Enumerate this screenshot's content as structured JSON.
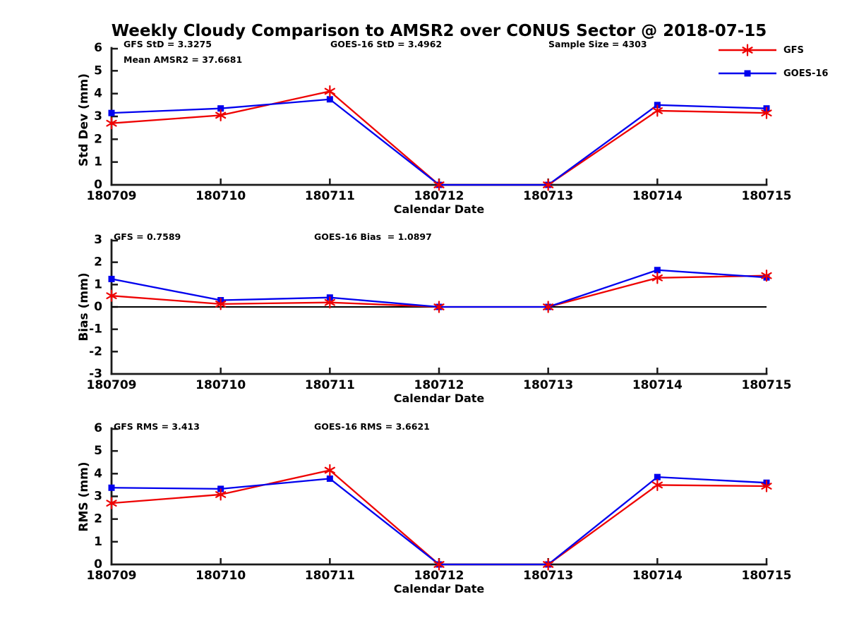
{
  "title": "Weekly Cloudy Comparison to AMSR2 over CONUS Sector @ 2018-07-15",
  "colors": {
    "gfs": "#ee0000",
    "goes16": "#0000ee",
    "axis": "#1a1a1a",
    "zero_line": "#000000",
    "text": "#000000",
    "background": "#ffffff"
  },
  "legend": {
    "items": [
      {
        "label": "GFS",
        "marker": "asterisk",
        "color": "#ee0000"
      },
      {
        "label": "GOES-16",
        "marker": "square",
        "color": "#0000ee"
      }
    ]
  },
  "chart_data": [
    {
      "type": "line",
      "ylabel": "Std Dev (mm)",
      "xlabel": "Calendar Date",
      "ylim": [
        0,
        6
      ],
      "yticks": [
        0,
        1,
        2,
        3,
        4,
        5,
        6
      ],
      "grid": false,
      "legend_position": "upper-right-outside",
      "categories": [
        "180709",
        "180710",
        "180711",
        "180712",
        "180713",
        "180714",
        "180715"
      ],
      "series": [
        {
          "name": "GFS",
          "color": "#ee0000",
          "marker": "asterisk",
          "values": [
            2.7,
            3.05,
            4.1,
            0,
            0,
            3.25,
            3.15
          ]
        },
        {
          "name": "GOES-16",
          "color": "#0000ee",
          "marker": "square",
          "values": [
            3.15,
            3.35,
            3.75,
            0,
            0,
            3.5,
            3.35
          ]
        }
      ],
      "annotations": {
        "left": "GFS StD = 3.3275",
        "left2": "Mean AMSR2 = 37.6681",
        "center": "GOES-16 StD = 3.4962",
        "right": "Sample Size = 4303"
      }
    },
    {
      "type": "line",
      "ylabel": "Bias (mm)",
      "xlabel": "Calendar Date",
      "ylim": [
        -3,
        3
      ],
      "yticks": [
        3,
        2,
        1,
        0,
        -1,
        -2,
        -3
      ],
      "zero_line": true,
      "grid": false,
      "categories": [
        "180709",
        "180710",
        "180711",
        "180712",
        "180713",
        "180714",
        "180715"
      ],
      "series": [
        {
          "name": "GFS",
          "color": "#ee0000",
          "marker": "asterisk",
          "values": [
            0.5,
            0.13,
            0.2,
            0,
            0,
            1.3,
            1.4
          ]
        },
        {
          "name": "GOES-16",
          "color": "#0000ee",
          "marker": "square",
          "values": [
            1.25,
            0.3,
            0.42,
            0,
            0,
            1.65,
            1.32
          ]
        }
      ],
      "annotations": {
        "left": "GFS = 0.7589",
        "center": "GOES-16 Bias  = 1.0897"
      }
    },
    {
      "type": "line",
      "ylabel": "RMS (mm)",
      "xlabel": "Calendar Date",
      "ylim": [
        0,
        6
      ],
      "yticks": [
        0,
        1,
        2,
        3,
        4,
        5,
        6
      ],
      "grid": false,
      "categories": [
        "180709",
        "180710",
        "180711",
        "180712",
        "180713",
        "180714",
        "180715"
      ],
      "series": [
        {
          "name": "GFS",
          "color": "#ee0000",
          "marker": "asterisk",
          "values": [
            2.7,
            3.08,
            4.15,
            0,
            0,
            3.5,
            3.45
          ]
        },
        {
          "name": "GOES-16",
          "color": "#0000ee",
          "marker": "square",
          "values": [
            3.38,
            3.33,
            3.78,
            0,
            0,
            3.85,
            3.6
          ]
        }
      ],
      "annotations": {
        "left": "GFS RMS = 3.413",
        "center": "GOES-16 RMS = 3.6621"
      }
    }
  ]
}
